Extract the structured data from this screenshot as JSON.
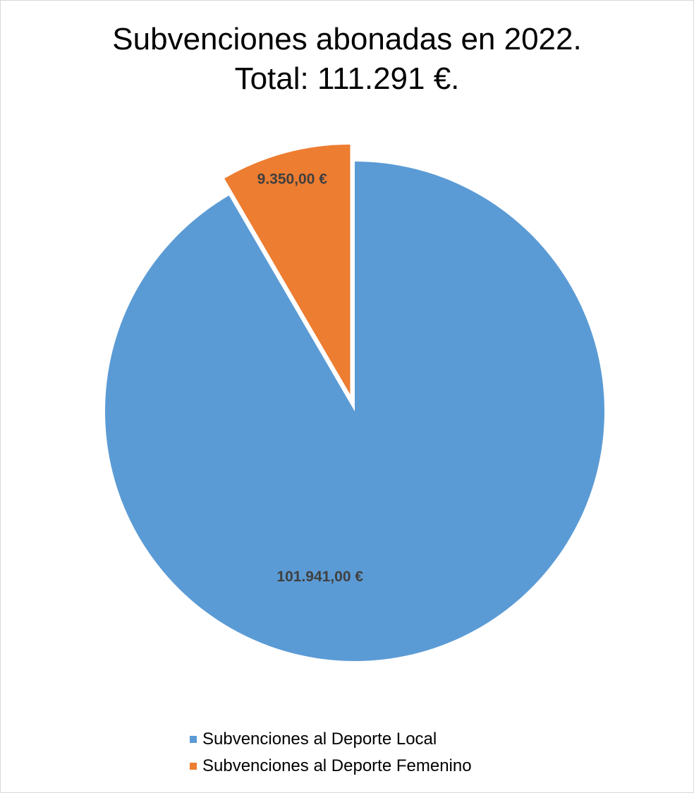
{
  "chart_data": {
    "type": "pie",
    "title": "Subvenciones abonadas en 2022.",
    "subtitle": "Total: 111.291 €.",
    "slices": [
      {
        "name": "Subvenciones al Deporte Local",
        "value": 101941,
        "label": "101.941,00 €",
        "color": "#5b9bd5",
        "exploded": false
      },
      {
        "name": "Subvenciones al Deporte Femenino",
        "value": 9350,
        "label": "9.350,00 €",
        "color": "#ed7d31",
        "exploded": true
      }
    ],
    "start_angle": "12 o'clock, clockwise",
    "legend_placement": "bottom",
    "data_label_color": "#404040"
  }
}
